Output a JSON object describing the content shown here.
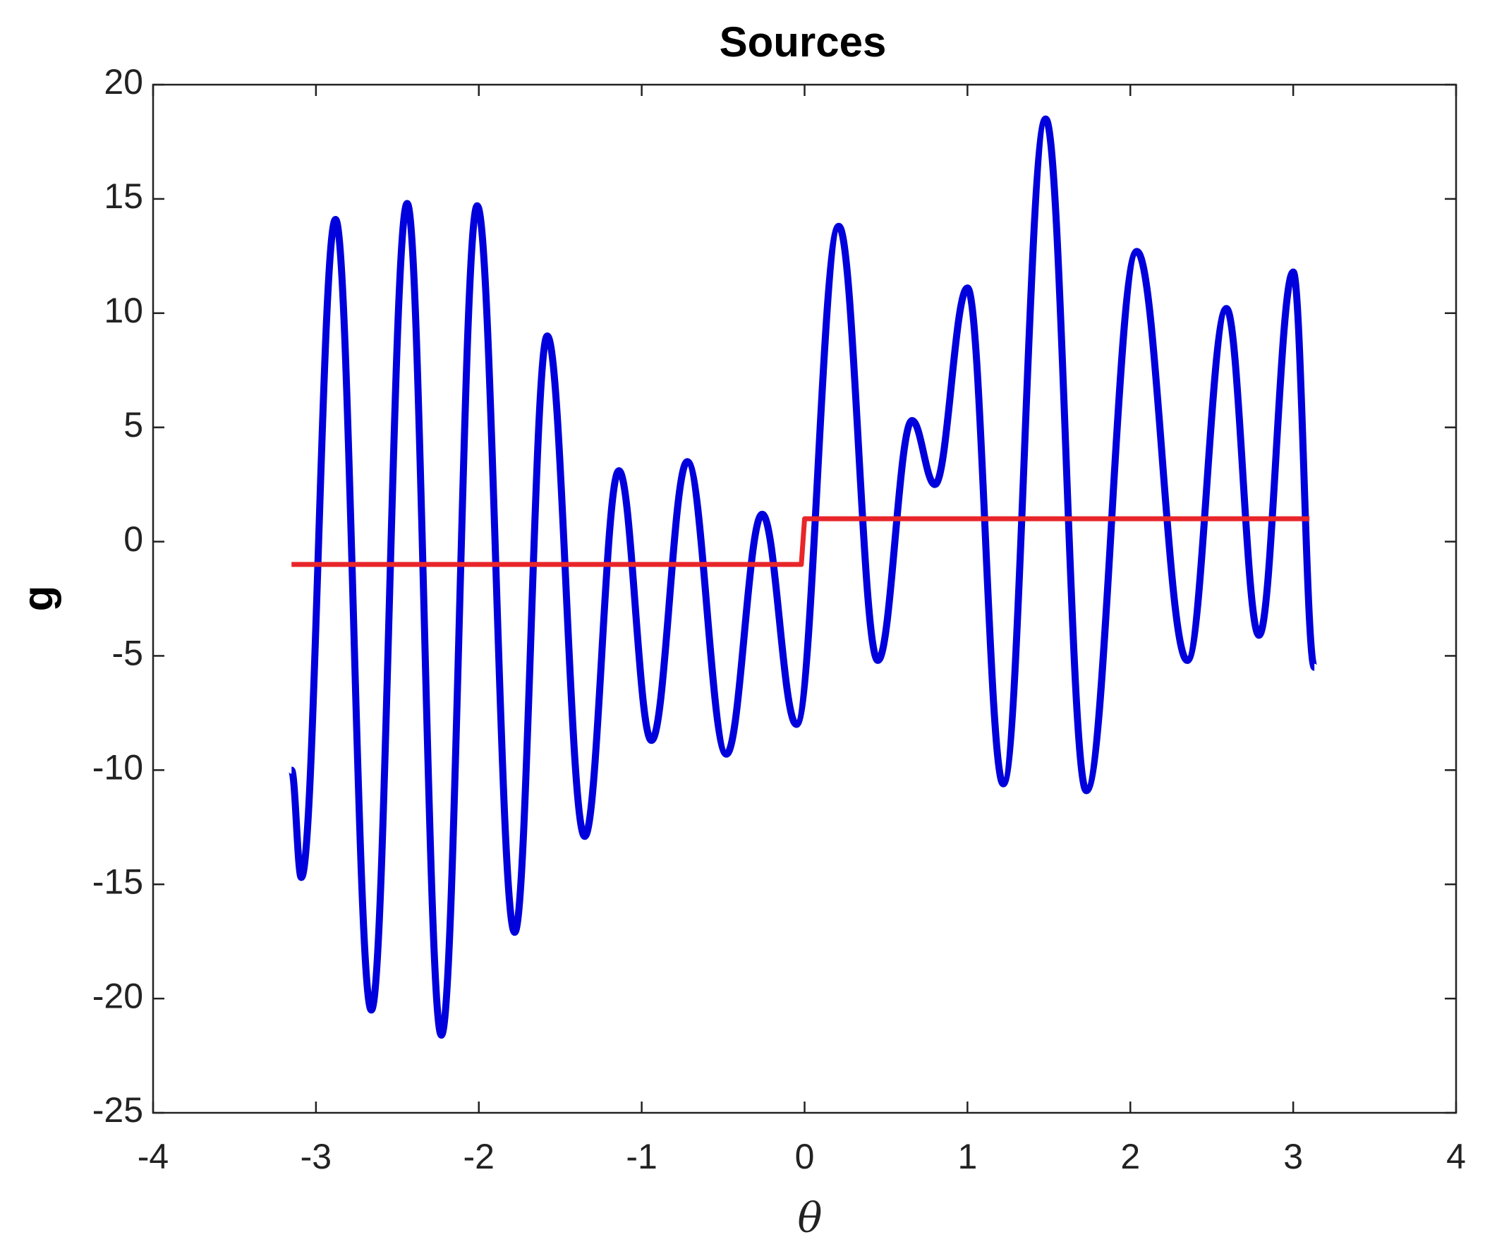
{
  "chart_data": {
    "type": "line",
    "title": "Sources",
    "x_label": "θ",
    "y_label": "g",
    "xlim": [
      -4,
      4
    ],
    "ylim": [
      -25,
      20
    ],
    "xticks": [
      -4,
      -3,
      -2,
      -1,
      0,
      1,
      2,
      3,
      4
    ],
    "yticks": [
      -25,
      -20,
      -15,
      -10,
      -5,
      0,
      5,
      10,
      15,
      20
    ],
    "series": [
      {
        "name": "blue",
        "color": "#0000dd",
        "x": [
          -3.15,
          -3.09,
          -2.88,
          -2.66,
          -2.44,
          -2.23,
          -2.01,
          -1.78,
          -1.58,
          -1.35,
          -1.14,
          -0.94,
          -0.72,
          -0.48,
          -0.26,
          -0.05,
          0.21,
          0.45,
          0.66,
          0.8,
          1.0,
          1.22,
          1.48,
          1.73,
          2.04,
          2.35,
          2.59,
          2.79,
          3.0,
          3.13
        ],
        "values": [
          -10,
          -14.7,
          14.1,
          -20.5,
          14.8,
          -21.6,
          14.7,
          -17.1,
          9.0,
          -12.9,
          3.1,
          -8.7,
          3.5,
          -9.3,
          1.2,
          -8.0,
          13.8,
          -5.2,
          5.3,
          2.5,
          11.1,
          -10.6,
          18.5,
          -10.9,
          12.7,
          -5.2,
          10.2,
          -4.1,
          11.8,
          -5.5
        ]
      },
      {
        "name": "red",
        "color": "#e8262a",
        "x": [
          -3.15,
          -0.02,
          0,
          3.1
        ],
        "values": [
          -1,
          -1,
          1,
          1
        ]
      }
    ]
  }
}
